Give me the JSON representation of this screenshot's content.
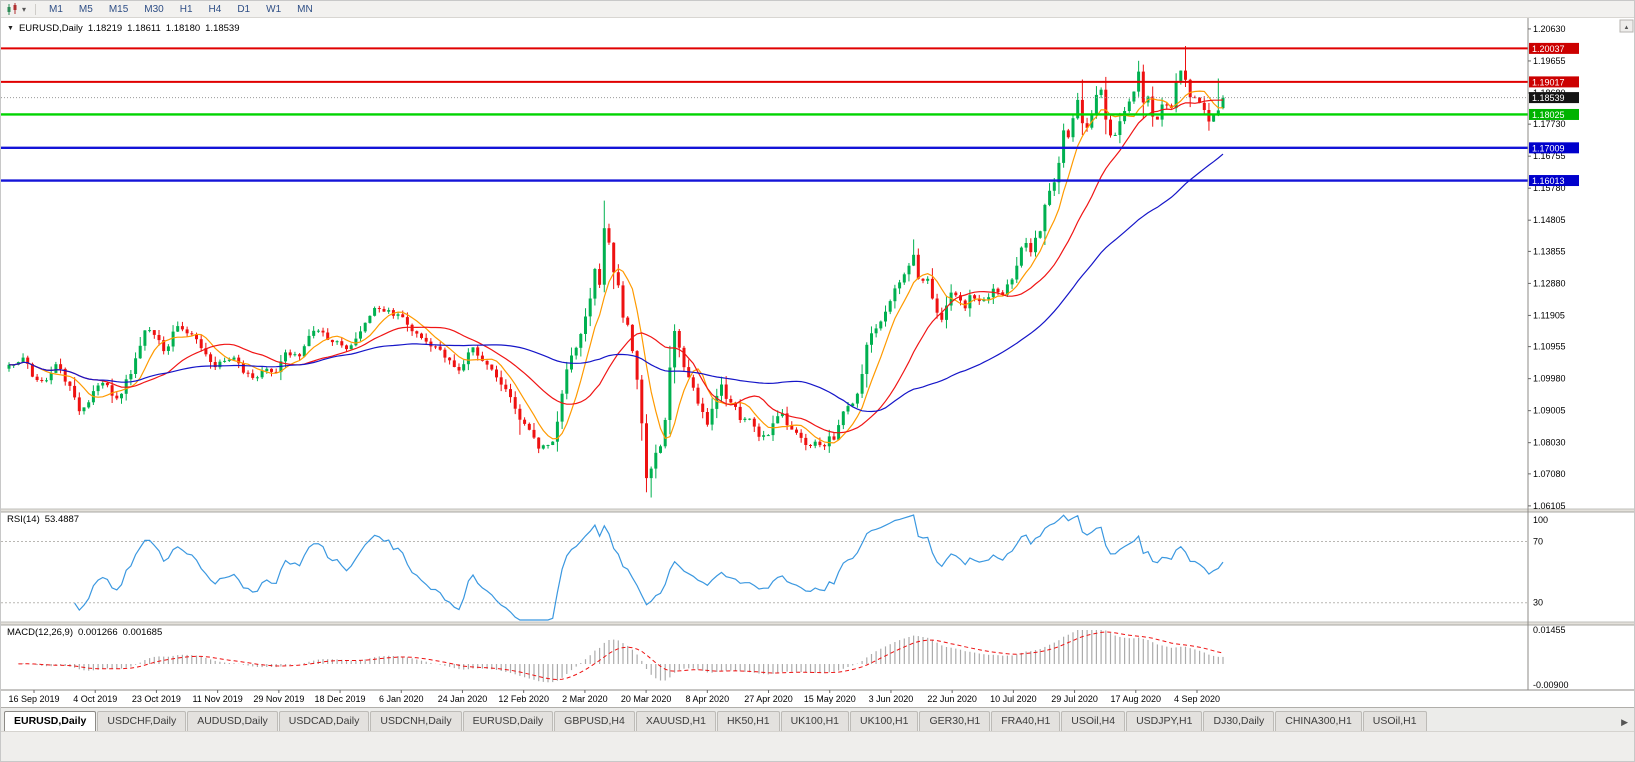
{
  "icons": {
    "dropdown_glyph": "▾",
    "collapse_glyph": "▼",
    "scroll_up_glyph": "▲",
    "tab_scroll_right_glyph": "▶"
  },
  "toolbar": {
    "timeframes": [
      "M1",
      "M5",
      "M15",
      "M30",
      "H1",
      "H4",
      "D1",
      "W1",
      "MN"
    ]
  },
  "main_header": {
    "symbol": "EURUSD,Daily",
    "open": "1.18219",
    "high": "1.18611",
    "low": "1.18180",
    "close": "1.18539"
  },
  "rsi_header": {
    "label": "RSI(14)",
    "value": "53.4887"
  },
  "macd_header": {
    "label": "MACD(12,26,9)",
    "main": "0.001266",
    "signal": "0.001685"
  },
  "bottom_tabs": {
    "active_index": 0,
    "items": [
      "EURUSD,Daily",
      "USDCHF,Daily",
      "AUDUSD,Daily",
      "USDCAD,Daily",
      "USDCNH,Daily",
      "EURUSD,Daily",
      "GBPUSD,H4",
      "XAUUSD,H1",
      "HK50,H1",
      "UK100,H1",
      "UK100,H1",
      "GER30,H1",
      "FRA40,H1",
      "USOil,H4",
      "USDJPY,H1",
      "DJ30,Daily",
      "CHINA300,H1",
      "USOil,H1"
    ]
  },
  "chart_data": {
    "type": "candlestick",
    "symbol": "EURUSD",
    "timeframe": "Daily",
    "x_labels": [
      "16 Sep 2019",
      "4 Oct 2019",
      "23 Oct 2019",
      "11 Nov 2019",
      "29 Nov 2019",
      "18 Dec 2019",
      "6 Jan 2020",
      "24 Jan 2020",
      "12 Feb 2020",
      "2 Mar 2020",
      "20 Mar 2020",
      "8 Apr 2020",
      "27 Apr 2020",
      "15 May 2020",
      "3 Jun 2020",
      "22 Jun 2020",
      "10 Jul 2020",
      "29 Jul 2020",
      "17 Aug 2020",
      "4 Sep 2020"
    ],
    "y_ticks": [
      "1.20630",
      "1.19655",
      "1.18680",
      "1.17730",
      "1.16755",
      "1.15780",
      "1.14805",
      "1.13855",
      "1.12880",
      "1.11905",
      "1.10955",
      "1.09980",
      "1.09005",
      "1.08030",
      "1.07080",
      "1.06105"
    ],
    "y_range": [
      1.0601,
      1.2078
    ],
    "horizontal_lines": [
      {
        "price": "1.20037",
        "color": "#e00000",
        "badge_color": "#cc0000",
        "width": 2,
        "kind": "resistance"
      },
      {
        "price": "1.19017",
        "color": "#e00000",
        "badge_color": "#cc0000",
        "width": 2,
        "kind": "resistance"
      },
      {
        "price": "1.18025",
        "color": "#00d400",
        "badge_color": "#00b300",
        "width": 2.4,
        "kind": "support"
      },
      {
        "price": "1.17009",
        "color": "#1414d8",
        "badge_color": "#0000cc",
        "width": 2.4,
        "kind": "support"
      },
      {
        "price": "1.16013",
        "color": "#1414d8",
        "badge_color": "#0000cc",
        "width": 2.4,
        "kind": "support"
      }
    ],
    "current_price": {
      "value": "1.18539",
      "badge_color": "#141414"
    },
    "candle_colors": {
      "up": "#00b050",
      "down": "#ee1111"
    },
    "moving_averages": [
      {
        "period": 7,
        "color": "#ff9a00"
      },
      {
        "period": 20,
        "color": "#f01515"
      },
      {
        "period": 52,
        "color": "#1515c8"
      }
    ],
    "rsi": {
      "period": 14,
      "last": 53.4887,
      "levels": [
        70,
        30
      ],
      "scale_labels": [
        "100",
        "70",
        "30"
      ],
      "color": "#3b98e0"
    },
    "macd": {
      "fast": 12,
      "slow": 26,
      "signal": 9,
      "last_main": 0.001266,
      "last_signal": 0.001685,
      "scale_max": "0.01455",
      "scale_min": "-0.00900",
      "hist_color": "#ababab",
      "signal_color": "#ee1111"
    },
    "bars_total": 260,
    "price_path_anchors": [
      [
        0,
        1.104
      ],
      [
        3,
        1.1062
      ],
      [
        5,
        1.1004
      ],
      [
        8,
        1.0993
      ],
      [
        10,
        1.1042
      ],
      [
        13,
        1.0976
      ],
      [
        15,
        1.0899
      ],
      [
        17,
        1.0926
      ],
      [
        18,
        1.096
      ],
      [
        20,
        1.0985
      ],
      [
        23,
        1.0938
      ],
      [
        26,
        1.1012
      ],
      [
        29,
        1.1145
      ],
      [
        31,
        1.1131
      ],
      [
        33,
        1.1082
      ],
      [
        36,
        1.1158
      ],
      [
        38,
        1.1136
      ],
      [
        40,
        1.1118
      ],
      [
        42,
        1.1072
      ],
      [
        44,
        1.1033
      ],
      [
        46,
        1.1052
      ],
      [
        48,
        1.1062
      ],
      [
        50,
        1.1016
      ],
      [
        53,
        1.1002
      ],
      [
        55,
        1.1028
      ],
      [
        57,
        1.1018
      ],
      [
        59,
        1.1078
      ],
      [
        62,
        1.1066
      ],
      [
        64,
        1.1128
      ],
      [
        66,
        1.1144
      ],
      [
        68,
        1.1116
      ],
      [
        70,
        1.1112
      ],
      [
        72,
        1.1088
      ],
      [
        74,
        1.112
      ],
      [
        76,
        1.1168
      ],
      [
        78,
        1.1213
      ],
      [
        80,
        1.1202
      ],
      [
        83,
        1.1194
      ],
      [
        85,
        1.1162
      ],
      [
        88,
        1.1122
      ],
      [
        91,
        1.1096
      ],
      [
        93,
        1.1062
      ],
      [
        96,
        1.1023
      ],
      [
        98,
        1.1078
      ],
      [
        99,
        1.1093
      ],
      [
        101,
        1.1052
      ],
      [
        104,
        1.1002
      ],
      [
        106,
        1.0966
      ],
      [
        109,
        1.0873
      ],
      [
        111,
        1.0842
      ],
      [
        113,
        1.0785
      ],
      [
        115,
        1.0796
      ],
      [
        116,
        1.0806
      ],
      [
        118,
        1.0952
      ],
      [
        119,
        1.1026
      ],
      [
        121,
        1.1092
      ],
      [
        122,
        1.1134
      ],
      [
        124,
        1.1242
      ],
      [
        125,
        1.1332
      ],
      [
        126,
        1.1284
      ],
      [
        127,
        1.1456
      ],
      [
        128,
        1.1412
      ],
      [
        129,
        1.1322
      ],
      [
        130,
        1.1282
      ],
      [
        131,
        1.1184
      ],
      [
        132,
        1.1162
      ],
      [
        133,
        1.1082
      ],
      [
        134,
        1.0995
      ],
      [
        135,
        1.0862
      ],
      [
        136,
        1.0695
      ],
      [
        137,
        1.0724
      ],
      [
        138,
        1.0772
      ],
      [
        139,
        1.0792
      ],
      [
        140,
        1.0872
      ],
      [
        141,
        1.1032
      ],
      [
        142,
        1.1143
      ],
      [
        143,
        1.1092
      ],
      [
        144,
        1.1033
      ],
      [
        145,
        1.1002
      ],
      [
        147,
        1.0922
      ],
      [
        149,
        1.0858
      ],
      [
        150,
        1.0906
      ],
      [
        152,
        1.098
      ],
      [
        153,
        1.0936
      ],
      [
        155,
        1.0912
      ],
      [
        156,
        1.0872
      ],
      [
        158,
        1.0876
      ],
      [
        160,
        1.0821
      ],
      [
        162,
        1.0826
      ],
      [
        163,
        1.0862
      ],
      [
        165,
        1.0892
      ],
      [
        166,
        1.0856
      ],
      [
        168,
        1.0833
      ],
      [
        170,
        1.0796
      ],
      [
        172,
        1.0806
      ],
      [
        174,
        1.0792
      ],
      [
        175,
        1.0822
      ],
      [
        176,
        1.0812
      ],
      [
        178,
        1.0898
      ],
      [
        180,
        1.0922
      ],
      [
        181,
        1.0952
      ],
      [
        182,
        1.1012
      ],
      [
        183,
        1.1101
      ],
      [
        184,
        1.1136
      ],
      [
        186,
        1.1172
      ],
      [
        188,
        1.1234
      ],
      [
        190,
        1.1291
      ],
      [
        192,
        1.1342
      ],
      [
        193,
        1.1375
      ],
      [
        194,
        1.1302
      ],
      [
        195,
        1.1296
      ],
      [
        196,
        1.1302
      ],
      [
        197,
        1.1242
      ],
      [
        199,
        1.1177
      ],
      [
        201,
        1.126
      ],
      [
        202,
        1.1252
      ],
      [
        204,
        1.1212
      ],
      [
        205,
        1.1252
      ],
      [
        207,
        1.1234
      ],
      [
        209,
        1.1246
      ],
      [
        210,
        1.1272
      ],
      [
        212,
        1.1254
      ],
      [
        214,
        1.13
      ],
      [
        215,
        1.1342
      ],
      [
        216,
        1.1397
      ],
      [
        217,
        1.1411
      ],
      [
        218,
        1.1383
      ],
      [
        219,
        1.1427
      ],
      [
        220,
        1.1447
      ],
      [
        221,
        1.1527
      ],
      [
        222,
        1.157
      ],
      [
        223,
        1.1596
      ],
      [
        224,
        1.1655
      ],
      [
        225,
        1.1754
      ],
      [
        226,
        1.1733
      ],
      [
        227,
        1.1791
      ],
      [
        228,
        1.1847
      ],
      [
        229,
        1.1776
      ],
      [
        230,
        1.1762
      ],
      [
        231,
        1.1802
      ],
      [
        232,
        1.1862
      ],
      [
        233,
        1.1878
      ],
      [
        234,
        1.1787
      ],
      [
        235,
        1.1739
      ],
      [
        236,
        1.174
      ],
      [
        237,
        1.1782
      ],
      [
        238,
        1.1813
      ],
      [
        239,
        1.1842
      ],
      [
        240,
        1.1872
      ],
      [
        241,
        1.1933
      ],
      [
        242,
        1.1839
      ],
      [
        243,
        1.1857
      ],
      [
        244,
        1.1796
      ],
      [
        245,
        1.1787
      ],
      [
        246,
        1.1833
      ],
      [
        247,
        1.183
      ],
      [
        248,
        1.1822
      ],
      [
        249,
        1.1903
      ],
      [
        250,
        1.1936
      ],
      [
        251,
        1.1908
      ],
      [
        252,
        1.1855
      ],
      [
        253,
        1.1854
      ],
      [
        254,
        1.1838
      ],
      [
        255,
        1.1816
      ],
      [
        256,
        1.1781
      ],
      [
        257,
        1.1801
      ],
      [
        258,
        1.1815
      ],
      [
        259,
        1.18539
      ]
    ],
    "spikes": [
      {
        "bar": 109,
        "low": 1.0827
      },
      {
        "bar": 113,
        "low": 1.0778
      },
      {
        "bar": 127,
        "high": 1.1495
      },
      {
        "bar": 136,
        "low": 1.0652
      },
      {
        "bar": 137,
        "low": 1.0636
      },
      {
        "bar": 193,
        "high": 1.1422
      },
      {
        "bar": 229,
        "high": 1.1909
      },
      {
        "bar": 241,
        "high": 1.1966
      },
      {
        "bar": 251,
        "high": 1.2011
      },
      {
        "bar": 256,
        "low": 1.1753
      },
      {
        "bar": 258,
        "high": 1.1912
      }
    ]
  }
}
